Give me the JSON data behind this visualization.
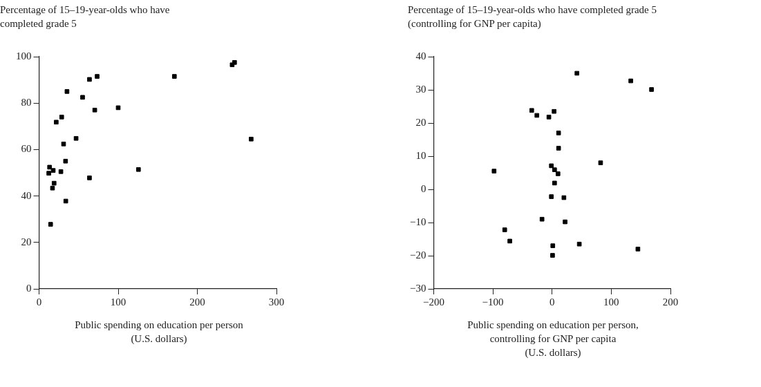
{
  "chart_data": [
    {
      "type": "scatter",
      "title": "Percentage of 15–19-year-olds who have\ncompleted grade 5",
      "xlabel": "Public spending on education per person\n(U.S. dollars)",
      "marker": "square",
      "legend": false,
      "grid": false,
      "xlim": [
        0,
        300
      ],
      "xticks": [
        0,
        100,
        200,
        300
      ],
      "ylim": [
        0,
        100
      ],
      "yticks": [
        0,
        20,
        40,
        60,
        80,
        100
      ],
      "series": [
        {
          "color": "#000000",
          "x": [
            12.3,
            13.3,
            17.9,
            17,
            19,
            14.6,
            21.7,
            27.6,
            28.6,
            31,
            33.5,
            33.8,
            35.3,
            46.8,
            55,
            63.7,
            63.7,
            70.4,
            73.4,
            100,
            125.6,
            171,
            244,
            247,
            268
          ],
          "values": [
            49.8,
            52.4,
            51,
            43.4,
            45.5,
            27.8,
            71.8,
            50.5,
            74,
            62.4,
            55,
            37.8,
            85,
            64.8,
            82.5,
            47.8,
            90.2,
            77,
            91.5,
            78,
            51.4,
            91.5,
            96.5,
            97.5,
            64.5
          ]
        }
      ]
    },
    {
      "type": "scatter",
      "title": "Percentage of 15–19-year-olds who have completed grade 5\n(controlling for GNP per capita)",
      "xlabel": "Public spending on education per person,\ncontrolling for GNP per capita\n(U.S. dollars)",
      "marker": "square",
      "legend": false,
      "grid": false,
      "xlim": [
        -200,
        200
      ],
      "xticks": [
        -200,
        -100,
        0,
        100,
        200
      ],
      "ylim": [
        -30,
        40
      ],
      "yticks": [
        -30,
        -20,
        -10,
        0,
        10,
        20,
        30,
        40
      ],
      "series": [
        {
          "color": "#000000",
          "x": [
            -98,
            -80,
            -71.4,
            -34.4,
            -25.7,
            -5.4,
            3.4,
            -1.2,
            4.2,
            4.2,
            -1.2,
            -17,
            1.2,
            0.8,
            11,
            11,
            10,
            42,
            133,
            168,
            82,
            20,
            22,
            46,
            145
          ],
          "values": [
            5.5,
            -12.2,
            -15.6,
            23.8,
            22.3,
            21.8,
            23.5,
            7.1,
            5.9,
            1.9,
            -2.2,
            -9,
            -17,
            -19.9,
            17,
            12.4,
            4.7,
            35,
            32.7,
            30.1,
            8,
            -2.5,
            -9.8,
            -16.5,
            -18
          ]
        }
      ]
    }
  ]
}
